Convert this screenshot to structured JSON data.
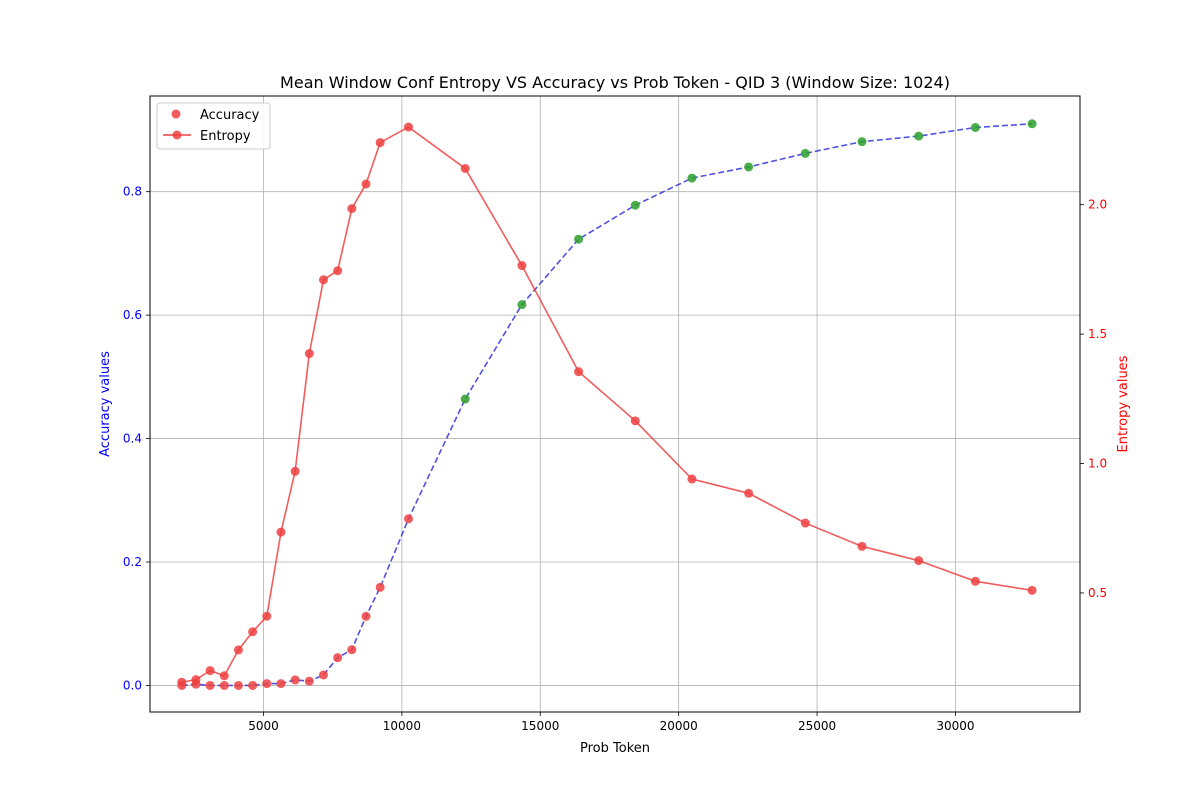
{
  "chart_data": {
    "type": "line",
    "title": "Mean Window Conf Entropy VS Accuracy vs Prob Token - QID 3 (Window Size: 1024)",
    "xlabel": "Prob Token",
    "ylabel_left": "Accuracy values",
    "ylabel_right": "Entropy values",
    "xlim": [
      900,
      34500
    ],
    "ylim_left": [
      -0.043,
      0.955
    ],
    "ylim_right": [
      0.04,
      2.42
    ],
    "x_ticks": [
      5000,
      10000,
      15000,
      20000,
      25000,
      30000
    ],
    "y_left_ticks": [
      0.0,
      0.2,
      0.4,
      0.6,
      0.8
    ],
    "y_right_ticks": [
      0.5,
      1.0,
      1.5,
      2.0
    ],
    "grid": true,
    "legend_position": "top-left",
    "legend": [
      {
        "label": "Accuracy",
        "kind": "scatter"
      },
      {
        "label": "Entropy",
        "kind": "line"
      }
    ],
    "colors": {
      "accuracy_marker": "#ef4040",
      "accuracy_marker_high": "#2ca02c",
      "accuracy_line": "#3333dd",
      "entropy": "#ef4040",
      "left_axis": "#0000ff",
      "right_axis": "#ff0000"
    },
    "series": [
      {
        "name": "Accuracy",
        "axis": "left",
        "x": [
          2048,
          2560,
          3072,
          3584,
          4096,
          4608,
          5120,
          5632,
          6144,
          6656,
          7168,
          7680,
          8192,
          8704,
          9216,
          10240,
          12288,
          14336,
          16384,
          18432,
          20480,
          22528,
          24576,
          26624,
          28672,
          30720,
          32768
        ],
        "y": [
          0.0,
          0.002,
          0.0,
          0.0,
          0.0,
          0.0,
          0.003,
          0.003,
          0.009,
          0.007,
          0.017,
          0.045,
          0.058,
          0.112,
          0.159,
          0.27,
          0.464,
          0.617,
          0.723,
          0.778,
          0.822,
          0.84,
          0.862,
          0.881,
          0.89,
          0.904,
          0.91
        ]
      },
      {
        "name": "Entropy",
        "axis": "right",
        "x": [
          2048,
          2560,
          3072,
          3584,
          4096,
          4608,
          5120,
          5632,
          6144,
          6656,
          7168,
          7680,
          8192,
          8704,
          9216,
          10240,
          12288,
          14336,
          16384,
          18432,
          20480,
          22528,
          24576,
          26624,
          28672,
          30720,
          32768
        ],
        "y": [
          0.155,
          0.165,
          0.2,
          0.18,
          0.28,
          0.35,
          0.41,
          0.735,
          0.97,
          1.425,
          1.71,
          1.745,
          1.985,
          2.08,
          2.24,
          2.3,
          2.14,
          1.765,
          1.355,
          1.165,
          0.94,
          0.885,
          0.77,
          0.68,
          0.625,
          0.545,
          0.51
        ]
      }
    ]
  }
}
